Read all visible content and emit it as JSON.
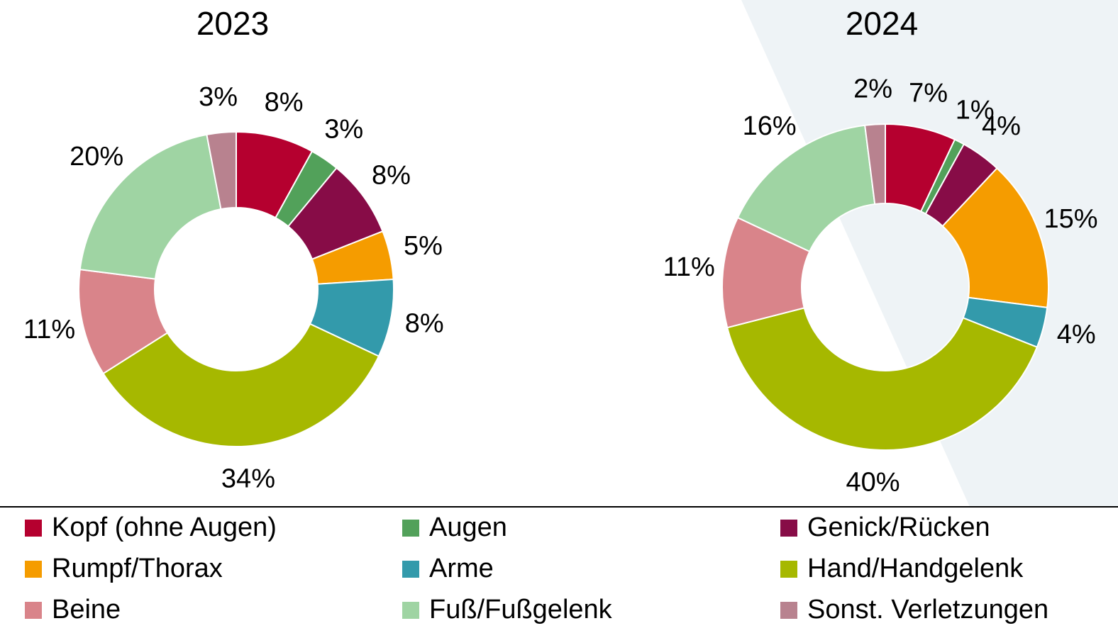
{
  "chart_data": {
    "type": "donut",
    "categories": [
      "Kopf (ohne Augen)",
      "Augen",
      "Genick/Rücken",
      "Rumpf/Thorax",
      "Arme",
      "Hand/Handgelenk",
      "Beine",
      "Fuß/Fußgelenk",
      "Sonst. Verletzungen"
    ],
    "colors": [
      "#b5002f",
      "#52a15a",
      "#870c47",
      "#f59c00",
      "#339aab",
      "#a6b800",
      "#d9848a",
      "#9fd4a3",
      "#b8828f"
    ],
    "value_labels": [
      [
        "8%",
        "3%",
        "8%",
        "5%",
        "8%",
        "34%",
        "11%",
        "20%",
        "3%"
      ],
      [
        "7%",
        "1%",
        "4%",
        "15%",
        "4%",
        "40%",
        "11%",
        "16%",
        "2%"
      ]
    ],
    "series": [
      {
        "name": "2023",
        "values": [
          8,
          3,
          8,
          5,
          8,
          34,
          11,
          20,
          3
        ]
      },
      {
        "name": "2024",
        "values": [
          7,
          1,
          4,
          15,
          4,
          40,
          11,
          16,
          2
        ]
      }
    ]
  }
}
